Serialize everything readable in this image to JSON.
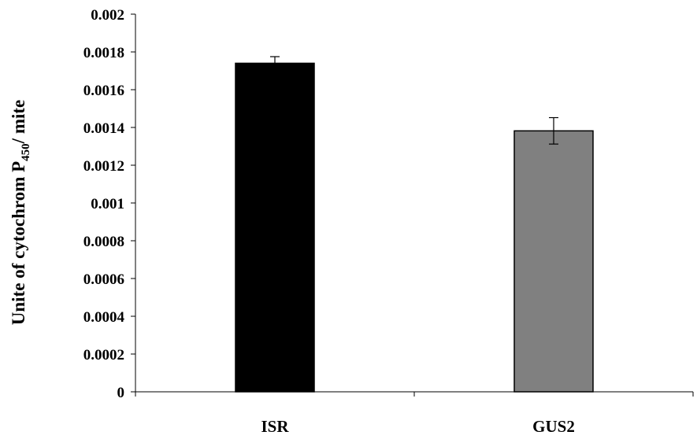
{
  "chart_data": {
    "type": "bar",
    "categories": [
      "ISR",
      "GUS2"
    ],
    "series": [
      {
        "values": [
          0.00174,
          0.001382
        ],
        "errors": [
          3.5e-05,
          7e-05
        ],
        "colors": [
          "#000000",
          "#808080"
        ]
      }
    ],
    "ylabel": {
      "main": "Unite of cytochrom P",
      "subscript": "450",
      "suffix": "/ mite"
    },
    "xlabel": "",
    "ylim": [
      0,
      0.002
    ],
    "yticks": [
      {
        "value": 0,
        "label": "0"
      },
      {
        "value": 0.0002,
        "label": "0.0002"
      },
      {
        "value": 0.0004,
        "label": "0.0004"
      },
      {
        "value": 0.0006,
        "label": "0.0006"
      },
      {
        "value": 0.0008,
        "label": "0.0008"
      },
      {
        "value": 0.001,
        "label": "0.001"
      },
      {
        "value": 0.0012,
        "label": "0.0012"
      },
      {
        "value": 0.0014,
        "label": "0.0014"
      },
      {
        "value": 0.0016,
        "label": "0.0016"
      },
      {
        "value": 0.0018,
        "label": "0.0018"
      },
      {
        "value": 0.002,
        "label": "0.002"
      }
    ],
    "grid": false,
    "legend": "none"
  }
}
